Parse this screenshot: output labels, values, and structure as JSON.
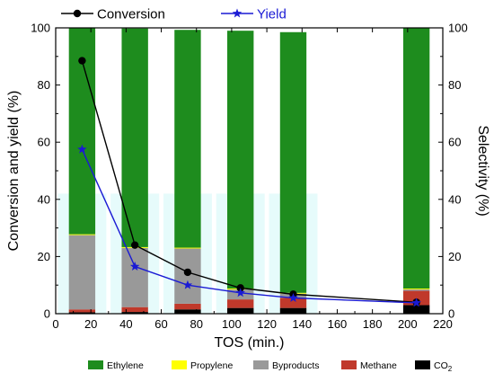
{
  "chart_data": {
    "type": "bar",
    "xlabel": "TOS (min.)",
    "ylabel_left": "Conversion and yield (%)",
    "ylabel_right": "Selectivity (%)",
    "xlim": [
      0,
      220
    ],
    "ylim_left": [
      0,
      100
    ],
    "ylim_right": [
      0,
      100
    ],
    "x_ticks": [
      0,
      20,
      40,
      60,
      80,
      100,
      120,
      140,
      160,
      180,
      200,
      220
    ],
    "y_ticks": [
      0,
      20,
      40,
      60,
      80,
      100
    ],
    "bar_x": [
      15,
      45,
      75,
      105,
      135,
      205
    ],
    "stacks": [
      {
        "name": "CO2",
        "label_main": "CO",
        "label_sub": "2",
        "color": "#000000",
        "values": [
          0.5,
          0.6,
          1.5,
          2,
          2,
          3
        ]
      },
      {
        "name": "Methane",
        "color": "#c0392b",
        "values": [
          1.0,
          1.7,
          2.0,
          3,
          3.5,
          5
        ]
      },
      {
        "name": "Byproducts",
        "color": "#999999",
        "values": [
          26.0,
          20.7,
          19.3,
          3.5,
          1.5,
          0.5
        ]
      },
      {
        "name": "Propylene",
        "color": "#ffff00",
        "values": [
          0.3,
          0.3,
          0.3,
          0.3,
          0.3,
          0.3
        ]
      },
      {
        "name": "Ethylene",
        "color": "#1e8c1e",
        "values": [
          72.2,
          76.5,
          76.2,
          90.2,
          91.2,
          91.2
        ]
      }
    ],
    "lines": [
      {
        "name": "Conversion",
        "color": "#000000",
        "marker": "circle",
        "x": [
          15,
          45,
          75,
          105,
          135,
          205
        ],
        "y": [
          88.5,
          24,
          14.5,
          9,
          6.8,
          4
        ]
      },
      {
        "name": "Yield",
        "color": "#1a1ad4",
        "marker": "star",
        "x": [
          15,
          45,
          75,
          105,
          135,
          205
        ],
        "y": [
          57.5,
          16.5,
          10,
          7.3,
          5.5,
          3.8
        ]
      }
    ],
    "legend_bottom": [
      "Ethylene",
      "Propylene",
      "Byproducts",
      "Methane",
      "CO2"
    ],
    "legend_top": [
      "Conversion",
      "Yield"
    ],
    "grid": false
  }
}
